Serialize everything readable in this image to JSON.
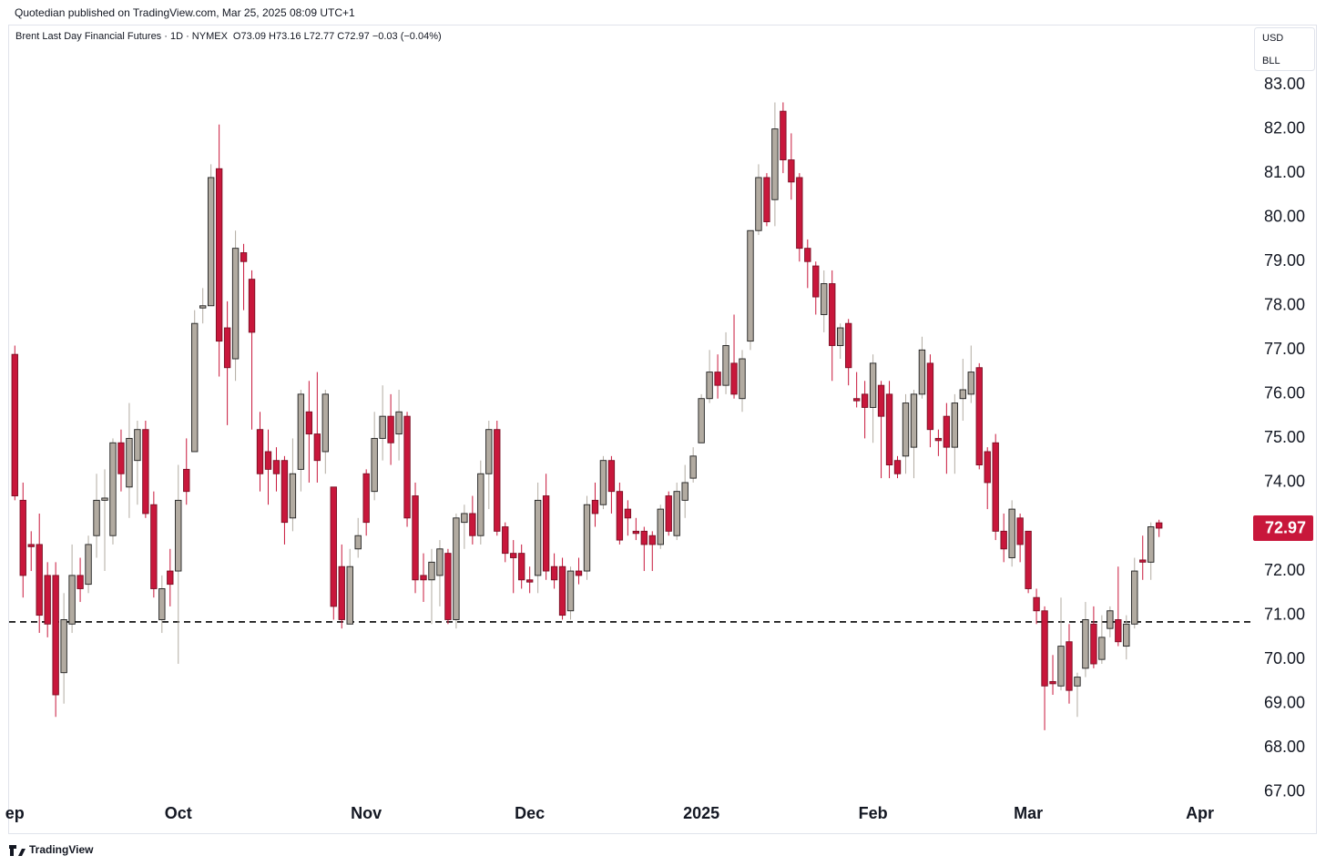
{
  "header": "Quotedian published on TradingView.com, Mar 25, 2025 08:09 UTC+1",
  "footer": "TradingView",
  "chart_data": {
    "type": "candlestick",
    "symbol": "Brent Last Day Financial Futures · 1D · NYMEX",
    "ohlc_label": "O73.09 H73.16 L72.77 C72.97 −0.03 (−0.04%)",
    "currency": "USD",
    "unit": "BLL",
    "up_color": "#b2aba1",
    "down_color": "#c8173b",
    "hline": 70.85,
    "open": [
      76.9,
      73.6,
      72.6,
      72.6,
      71.9,
      71.9,
      69.7,
      70.8,
      71.9,
      71.7,
      72.8,
      73.6,
      72.8,
      74.9,
      73.9,
      74.5,
      75.2,
      73.5,
      70.9,
      72.0,
      72.0,
      74.3,
      74.7,
      77.95,
      78.0,
      81.1,
      77.5,
      76.8,
      79.2,
      78.6,
      75.2,
      74.7,
      74.5,
      74.5,
      73.2,
      74.3,
      75.6,
      75.1,
      74.7,
      73.9,
      72.1,
      70.8,
      72.5,
      74.2,
      73.8,
      75.0,
      75.5,
      75.1,
      75.5,
      73.7,
      71.9,
      71.8,
      71.9,
      72.4,
      70.9,
      73.1,
      73.3,
      72.8,
      74.2,
      75.2,
      73.0,
      72.4,
      72.4,
      71.8,
      71.9,
      73.7,
      72.1,
      72.1,
      71.1,
      72.0,
      72.0,
      73.6,
      73.5,
      74.5,
      73.8,
      73.4,
      72.9,
      72.9,
      72.8,
      72.6,
      73.7,
      72.8,
      73.6,
      74.1,
      74.9,
      75.9,
      76.5,
      76.2,
      76.7,
      75.9,
      77.2,
      79.7,
      80.9,
      80.4,
      82.4,
      81.3,
      80.9,
      79.3,
      78.9,
      77.8,
      78.5,
      77.1,
      77.6,
      75.9,
      76.0,
      75.7,
      76.2,
      76.0,
      74.5,
      74.6,
      74.8,
      76.0,
      76.7,
      75.0,
      75.5,
      74.8,
      75.9,
      76.0,
      76.6,
      74.7,
      74.9,
      72.9,
      72.3,
      73.2,
      72.9,
      71.4,
      71.1,
      69.5,
      69.4,
      70.4,
      69.4,
      69.8,
      70.8,
      70.0,
      70.7,
      70.9,
      70.3,
      70.8,
      72.25,
      72.2,
      73.09
    ],
    "high": [
      77.1,
      74.0,
      72.9,
      73.3,
      72.2,
      72.2,
      71.5,
      72.6,
      72.3,
      72.8,
      74.2,
      74.3,
      75.0,
      75.2,
      75.8,
      75.4,
      75.4,
      73.8,
      71.9,
      72.5,
      74.4,
      75.0,
      77.9,
      78.4,
      81.2,
      82.1,
      78.1,
      79.7,
      79.4,
      78.8,
      75.6,
      75.2,
      74.8,
      74.6,
      75.0,
      76.1,
      76.3,
      76.5,
      76.1,
      73.9,
      72.6,
      72.5,
      73.2,
      74.3,
      75.6,
      76.2,
      76.0,
      76.1,
      75.6,
      74.0,
      72.4,
      72.5,
      72.7,
      72.5,
      73.3,
      73.5,
      73.7,
      74.5,
      75.4,
      75.4,
      73.1,
      72.7,
      72.6,
      72.1,
      74.0,
      74.2,
      72.4,
      72.3,
      72.1,
      72.3,
      73.7,
      74.0,
      74.6,
      74.6,
      74.0,
      73.6,
      73.2,
      73.0,
      72.9,
      73.5,
      73.8,
      74.0,
      74.4,
      74.8,
      76.0,
      77.0,
      76.9,
      77.4,
      77.8,
      77.0,
      79.7,
      81.2,
      81.0,
      82.6,
      82.6,
      81.9,
      81.0,
      79.5,
      79.0,
      78.8,
      78.8,
      77.6,
      77.7,
      76.5,
      76.3,
      76.9,
      76.3,
      76.3,
      74.6,
      76.0,
      76.1,
      77.3,
      76.9,
      75.2,
      75.8,
      76.0,
      76.8,
      77.1,
      76.7,
      74.8,
      75.1,
      73.3,
      73.6,
      73.3,
      72.9,
      71.6,
      71.2,
      70.1,
      71.4,
      70.8,
      69.7,
      71.3,
      71.2,
      71.0,
      71.2,
      72.1,
      71.0,
      72.3,
      72.8,
      73.1,
      73.16
    ],
    "low": [
      73.6,
      71.4,
      72.0,
      70.6,
      70.5,
      68.7,
      69.0,
      70.6,
      71.3,
      71.5,
      72.3,
      72.0,
      72.6,
      73.8,
      73.2,
      73.5,
      73.2,
      71.4,
      70.6,
      71.2,
      69.9,
      73.5,
      74.7,
      77.6,
      78.0,
      76.4,
      75.3,
      76.3,
      77.9,
      75.2,
      73.8,
      73.5,
      73.8,
      72.6,
      72.9,
      73.8,
      74.0,
      74.0,
      74.2,
      70.9,
      70.7,
      70.8,
      72.3,
      72.8,
      73.6,
      74.5,
      74.4,
      74.5,
      73.0,
      71.5,
      71.3,
      70.8,
      71.2,
      70.8,
      70.7,
      72.5,
      72.6,
      72.6,
      73.4,
      72.8,
      72.2,
      71.5,
      71.6,
      71.5,
      71.5,
      71.8,
      71.6,
      70.9,
      70.9,
      71.7,
      71.8,
      73.0,
      73.4,
      73.3,
      72.6,
      72.8,
      72.7,
      72.0,
      72.0,
      72.5,
      72.8,
      72.7,
      73.2,
      74.0,
      74.9,
      75.8,
      75.9,
      76.0,
      75.9,
      75.6,
      77.0,
      79.6,
      79.8,
      79.8,
      81.0,
      80.4,
      79.0,
      78.4,
      77.8,
      77.4,
      76.3,
      76.8,
      76.2,
      75.7,
      75.0,
      74.9,
      74.1,
      74.1,
      74.1,
      74.2,
      74.1,
      75.9,
      74.8,
      74.6,
      74.2,
      74.2,
      75.4,
      75.8,
      74.3,
      73.4,
      72.7,
      72.2,
      72.1,
      72.2,
      71.5,
      70.8,
      68.4,
      69.2,
      69.3,
      69.0,
      68.7,
      69.6,
      69.8,
      69.9,
      70.5,
      70.3,
      70.0,
      70.7,
      71.8,
      71.8,
      72.77
    ],
    "close": [
      73.7,
      71.9,
      72.55,
      71.0,
      70.8,
      69.2,
      70.9,
      71.9,
      71.6,
      72.6,
      73.6,
      73.65,
      74.9,
      74.2,
      75.0,
      75.2,
      73.3,
      71.6,
      71.6,
      71.7,
      73.6,
      73.8,
      77.6,
      78.0,
      80.9,
      77.2,
      76.6,
      79.3,
      79.0,
      77.4,
      74.2,
      74.3,
      74.2,
      73.1,
      74.2,
      76.0,
      75.1,
      74.5,
      76.0,
      71.2,
      70.9,
      72.1,
      72.8,
      73.1,
      75.0,
      75.5,
      74.9,
      75.6,
      73.2,
      71.8,
      71.8,
      72.2,
      72.5,
      70.9,
      73.2,
      73.3,
      72.8,
      74.2,
      75.2,
      72.9,
      72.4,
      72.3,
      71.8,
      71.75,
      73.6,
      72.0,
      71.8,
      71.0,
      72.0,
      71.9,
      73.5,
      73.3,
      74.5,
      73.8,
      72.7,
      73.2,
      72.85,
      72.6,
      72.6,
      73.4,
      72.9,
      73.8,
      74.0,
      74.6,
      75.9,
      76.5,
      76.2,
      77.1,
      76.0,
      76.8,
      79.7,
      80.9,
      79.9,
      82.0,
      81.3,
      80.8,
      79.3,
      79.0,
      78.2,
      78.5,
      77.1,
      77.5,
      76.6,
      75.85,
      75.7,
      76.7,
      75.5,
      74.4,
      74.2,
      75.8,
      76.0,
      77.0,
      75.2,
      74.95,
      74.8,
      75.8,
      76.1,
      76.5,
      74.4,
      74.0,
      72.9,
      72.5,
      73.4,
      72.6,
      71.6,
      71.1,
      69.4,
      69.45,
      70.3,
      69.3,
      69.6,
      70.9,
      69.9,
      70.5,
      71.1,
      70.4,
      70.8,
      72.0,
      72.2,
      73.0,
      72.97
    ],
    "xlim": [
      -0.7,
      151.4
    ],
    "xticks": [
      {
        "value": 0,
        "label": "ep"
      },
      {
        "value": 20,
        "label": "Oct"
      },
      {
        "value": 43,
        "label": "Nov"
      },
      {
        "value": 63,
        "label": "Dec"
      },
      {
        "value": 84,
        "label": "2025"
      },
      {
        "value": 105,
        "label": "Feb"
      },
      {
        "value": 124,
        "label": "Mar"
      },
      {
        "value": 145,
        "label": "Apr"
      }
    ],
    "ylim": [
      66.79,
      84.36
    ],
    "yticks": [
      {
        "value": 67,
        "label": "67.00"
      },
      {
        "value": 68,
        "label": "68.00"
      },
      {
        "value": 69,
        "label": "69.00"
      },
      {
        "value": 70,
        "label": "70.00"
      },
      {
        "value": 71,
        "label": "71.00"
      },
      {
        "value": 72,
        "label": "72.00"
      },
      {
        "value": 73,
        "label": "73.00"
      },
      {
        "value": 74,
        "label": "74.00"
      },
      {
        "value": 75,
        "label": "75.00"
      },
      {
        "value": 76,
        "label": "76.00"
      },
      {
        "value": 77,
        "label": "77.00"
      },
      {
        "value": 78,
        "label": "78.00"
      },
      {
        "value": 79,
        "label": "79.00"
      },
      {
        "value": 80,
        "label": "80.00"
      },
      {
        "value": 81,
        "label": "81.00"
      },
      {
        "value": 82,
        "label": "82.00"
      },
      {
        "value": 83,
        "label": "83.00"
      }
    ],
    "grid": false
  }
}
